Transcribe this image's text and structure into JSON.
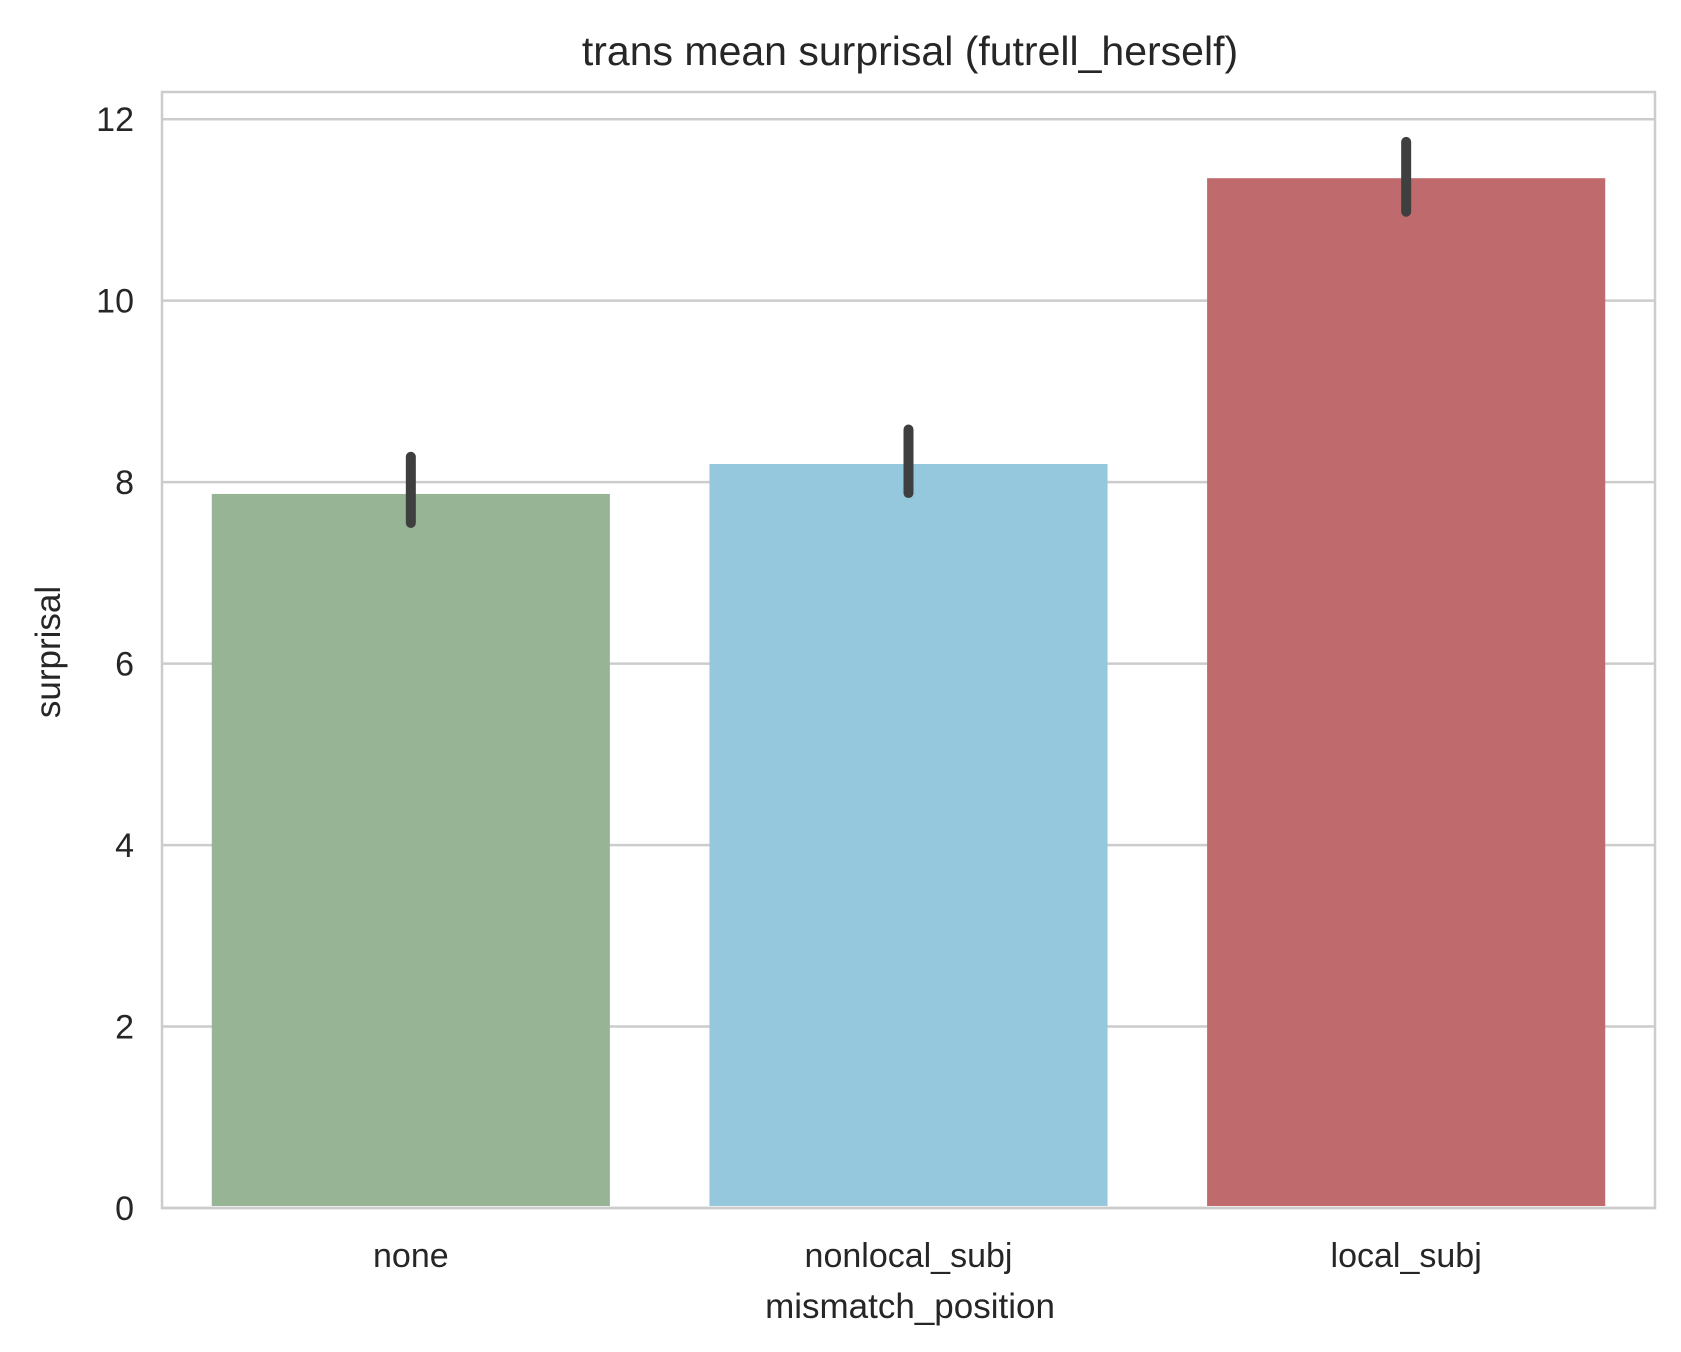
{
  "chart_data": {
    "type": "bar",
    "title": "trans mean surprisal (futrell_herself)",
    "xlabel": "mismatch_position",
    "ylabel": "surprisal",
    "categories": [
      "none",
      "nonlocal_subj",
      "local_subj"
    ],
    "values": [
      7.87,
      8.2,
      11.35
    ],
    "error_low": [
      7.55,
      7.88,
      10.98
    ],
    "error_high": [
      8.28,
      8.58,
      11.75
    ],
    "colors": [
      "#97b595",
      "#96c8dd",
      "#bf6a6c"
    ],
    "error_color": "#3f3f3f",
    "ylim": [
      0,
      12.3
    ],
    "yticks": [
      "0",
      "2",
      "4",
      "6",
      "8",
      "10",
      "12"
    ],
    "grid": true
  }
}
